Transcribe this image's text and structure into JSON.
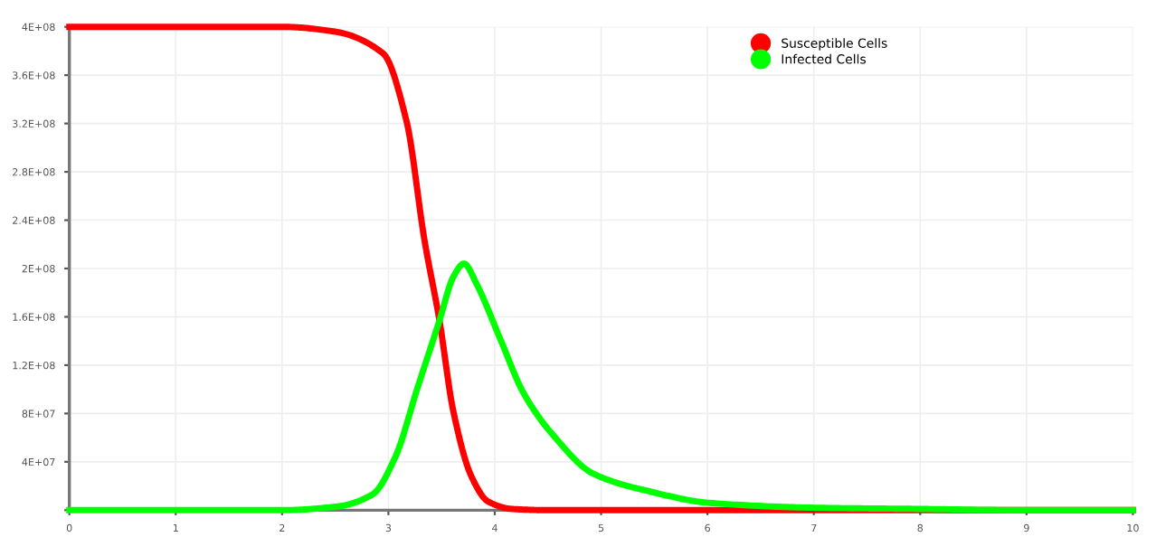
{
  "chart_data": {
    "type": "line",
    "xlim": [
      0,
      10
    ],
    "xticks": [
      0,
      1,
      2,
      3,
      4,
      5,
      6,
      7,
      8,
      9,
      10
    ],
    "ylim": [
      0,
      400000000
    ],
    "yticks": [
      {
        "value": 0,
        "label": null
      },
      {
        "value": 40000000,
        "label": "4E+07"
      },
      {
        "value": 80000000,
        "label": "8E+07"
      },
      {
        "value": 120000000,
        "label": "1.2E+08"
      },
      {
        "value": 160000000,
        "label": "1.6E+08"
      },
      {
        "value": 200000000,
        "label": "2E+08"
      },
      {
        "value": 240000000,
        "label": "2.4E+08"
      },
      {
        "value": 280000000,
        "label": "2.8E+08"
      },
      {
        "value": 320000000,
        "label": "3.2E+08"
      },
      {
        "value": 360000000,
        "label": "3.6E+08"
      },
      {
        "value": 400000000,
        "label": "4E+08"
      }
    ],
    "grid": true,
    "legend": "top right",
    "marker": "none",
    "line_style": "solid",
    "series": [
      {
        "name": "Susceptible Cells",
        "color": "#ff0000",
        "x": [
          0,
          1,
          2,
          2.5,
          2.95,
          3.17,
          3.34,
          3.48,
          3.61,
          3.78,
          3.94,
          4.16,
          4.5,
          5,
          6,
          7,
          8,
          9,
          10
        ],
        "values": [
          400000000,
          400000000,
          400000000,
          396000000,
          378000000,
          322000000,
          223000000,
          157000000,
          82000000,
          28000000,
          7000000,
          1000000,
          0,
          0,
          0,
          0,
          0,
          0,
          0
        ]
      },
      {
        "name": "Infected Cells",
        "color": "#00ff00",
        "x": [
          0,
          1,
          2,
          2.52,
          2.85,
          3.06,
          3.28,
          3.48,
          3.61,
          3.71,
          3.83,
          4.05,
          4.27,
          4.54,
          4.93,
          5.48,
          6.02,
          7,
          8,
          9,
          10
        ],
        "values": [
          0,
          0,
          0,
          3000000,
          13000000,
          43000000,
          103000000,
          157000000,
          193000000,
          204000000,
          187000000,
          142000000,
          97000000,
          63000000,
          30000000,
          15000000,
          6000000,
          2000000,
          1000000,
          0,
          0
        ]
      }
    ]
  }
}
